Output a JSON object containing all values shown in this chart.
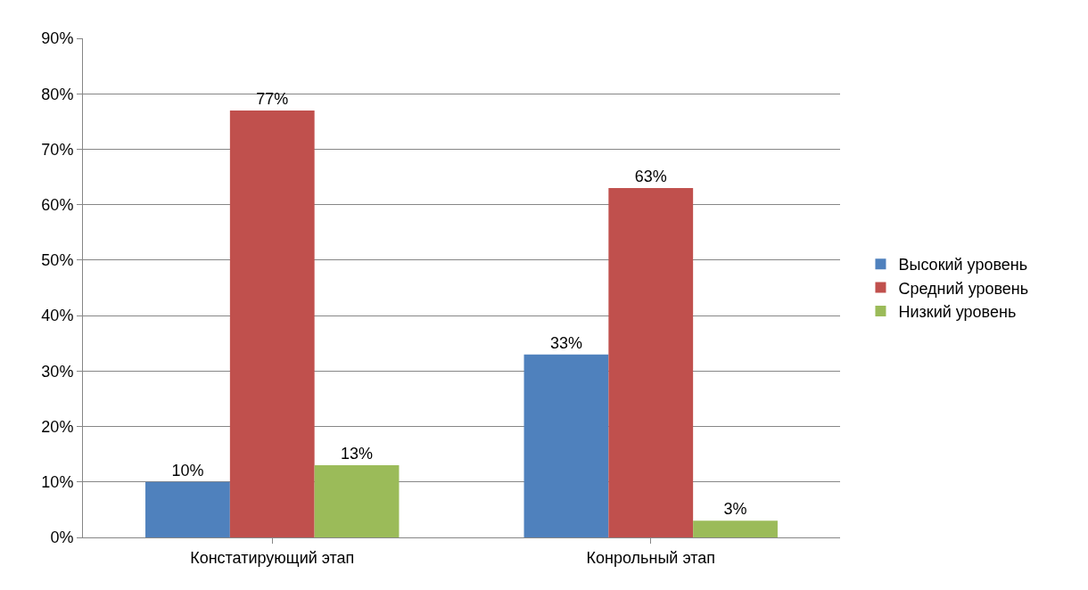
{
  "chart_data": {
    "type": "bar",
    "categories": [
      "Констатирующий этап",
      "Конрольный этап"
    ],
    "series": [
      {
        "name": "Высокий уровень",
        "color": "#4f81bd",
        "values": [
          10,
          33
        ],
        "value_labels": [
          "10%",
          "33%"
        ]
      },
      {
        "name": "Средний уровень",
        "color": "#c0504d",
        "values": [
          77,
          63
        ],
        "value_labels": [
          "77%",
          "63%"
        ]
      },
      {
        "name": "Низкий уровень",
        "color": "#9bbb59",
        "values": [
          13,
          3
        ],
        "value_labels": [
          "13%",
          "3%"
        ]
      }
    ],
    "ylim": [
      0,
      90
    ],
    "yticks": [
      {
        "value": 0,
        "label": "0%"
      },
      {
        "value": 10,
        "label": "10%"
      },
      {
        "value": 20,
        "label": "20%"
      },
      {
        "value": 30,
        "label": "30%"
      },
      {
        "value": 40,
        "label": "40%"
      },
      {
        "value": 50,
        "label": "50%"
      },
      {
        "value": 60,
        "label": "60%"
      },
      {
        "value": 70,
        "label": "70%"
      },
      {
        "value": 80,
        "label": "80%"
      },
      {
        "value": 90,
        "label": "90%"
      }
    ],
    "grid": "y",
    "legend": "right"
  }
}
